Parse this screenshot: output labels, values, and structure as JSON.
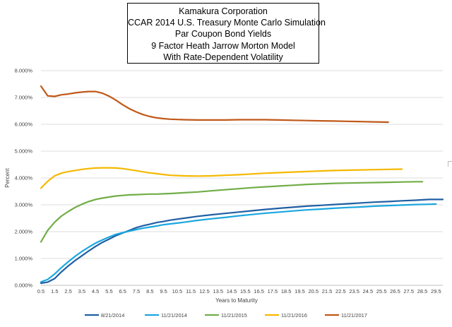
{
  "chart_data": {
    "type": "line",
    "title_lines": [
      "Kamakura Corporation",
      "CCAR 2014 U.S. Treasury Monte Carlo Simulation",
      "Par Coupon Bond Yields",
      "9 Factor Heath Jarrow Morton Model",
      "With Rate-Dependent Volatility"
    ],
    "xlabel": "Years to Maturity",
    "ylabel": "Percent",
    "xlim": [
      0.5,
      30
    ],
    "ylim": [
      0,
      8
    ],
    "y_ticks": [
      "0.000%",
      "1.000%",
      "2.000%",
      "3.000%",
      "4.000%",
      "5.000%",
      "6.000%",
      "7.000%",
      "8.000%"
    ],
    "x_ticks": [
      "0.5",
      "1.5",
      "2.5",
      "3.5",
      "4.5",
      "5.5",
      "6.5",
      "7.5",
      "8.5",
      "9.5",
      "10.5",
      "11.5",
      "12.5",
      "13.5",
      "14.5",
      "15.5",
      "16.5",
      "17.5",
      "18.5",
      "19.5",
      "20.5",
      "21.5",
      "22.5",
      "23.5",
      "24.5",
      "25.5",
      "26.5",
      "27.5",
      "28.5",
      "29.5"
    ],
    "grid": "horizontal",
    "legend_position": "bottom",
    "series": [
      {
        "name": "8/21/2014",
        "color": "#1f5fa3",
        "x": [
          0.5,
          1,
          1.5,
          2,
          2.5,
          3,
          3.5,
          4,
          4.5,
          5,
          5.5,
          6,
          6.5,
          7,
          7.5,
          8,
          8.5,
          9,
          9.5,
          10,
          11,
          12,
          13,
          14,
          15,
          16,
          17,
          18,
          19,
          20,
          21,
          22,
          23,
          24,
          25,
          26,
          27,
          28,
          29,
          30
        ],
        "y": [
          0.08,
          0.12,
          0.25,
          0.5,
          0.72,
          0.92,
          1.1,
          1.28,
          1.45,
          1.6,
          1.72,
          1.85,
          1.95,
          2.05,
          2.15,
          2.22,
          2.28,
          2.34,
          2.38,
          2.43,
          2.5,
          2.57,
          2.63,
          2.68,
          2.73,
          2.78,
          2.83,
          2.87,
          2.91,
          2.95,
          2.98,
          3.01,
          3.04,
          3.07,
          3.1,
          3.12,
          3.15,
          3.17,
          3.2,
          3.2
        ]
      },
      {
        "name": "11/21/2014",
        "color": "#1aa6df",
        "x": [
          0.5,
          1,
          1.5,
          2,
          2.5,
          3,
          3.5,
          4,
          4.5,
          5,
          5.5,
          6,
          6.5,
          7,
          7.5,
          8,
          8.5,
          9,
          9.5,
          10,
          11,
          12,
          13,
          14,
          15,
          16,
          17,
          18,
          19,
          20,
          21,
          22,
          23,
          24,
          25,
          26,
          27,
          28,
          29,
          29.5
        ],
        "y": [
          0.13,
          0.22,
          0.42,
          0.66,
          0.88,
          1.08,
          1.26,
          1.42,
          1.57,
          1.69,
          1.8,
          1.9,
          1.96,
          2.02,
          2.08,
          2.13,
          2.17,
          2.21,
          2.26,
          2.29,
          2.35,
          2.42,
          2.48,
          2.53,
          2.59,
          2.64,
          2.69,
          2.73,
          2.77,
          2.81,
          2.84,
          2.87,
          2.9,
          2.92,
          2.95,
          2.97,
          2.99,
          3.01,
          3.02,
          3.03
        ]
      },
      {
        "name": "11/21/2015",
        "color": "#71ad47",
        "x": [
          0.5,
          1,
          1.5,
          2,
          2.5,
          3,
          3.5,
          4,
          4.5,
          5,
          5.5,
          6,
          6.5,
          7,
          7.5,
          8,
          8.5,
          9,
          9.5,
          10,
          11,
          12,
          13,
          14,
          15,
          16,
          17,
          18,
          19,
          20,
          21,
          22,
          23,
          24,
          25,
          26,
          27,
          28,
          28.5
        ],
        "y": [
          1.62,
          2.05,
          2.35,
          2.58,
          2.75,
          2.9,
          3.02,
          3.12,
          3.2,
          3.25,
          3.29,
          3.33,
          3.35,
          3.37,
          3.38,
          3.39,
          3.4,
          3.4,
          3.41,
          3.42,
          3.45,
          3.48,
          3.52,
          3.56,
          3.6,
          3.64,
          3.67,
          3.7,
          3.73,
          3.76,
          3.78,
          3.8,
          3.81,
          3.82,
          3.83,
          3.84,
          3.85,
          3.86,
          3.86
        ]
      },
      {
        "name": "11/21/2016",
        "color": "#f5b800",
        "x": [
          0.5,
          1,
          1.5,
          2,
          2.5,
          3,
          3.5,
          4,
          4.5,
          5,
          5.5,
          6,
          6.5,
          7,
          7.5,
          8,
          8.5,
          9,
          9.5,
          10,
          11,
          12,
          13,
          14,
          15,
          16,
          17,
          18,
          19,
          20,
          21,
          22,
          23,
          24,
          25,
          26,
          27
        ],
        "y": [
          3.62,
          3.88,
          4.08,
          4.18,
          4.24,
          4.28,
          4.32,
          4.35,
          4.37,
          4.38,
          4.38,
          4.37,
          4.35,
          4.31,
          4.27,
          4.23,
          4.19,
          4.16,
          4.13,
          4.1,
          4.08,
          4.07,
          4.08,
          4.1,
          4.12,
          4.15,
          4.18,
          4.2,
          4.22,
          4.24,
          4.26,
          4.28,
          4.29,
          4.3,
          4.31,
          4.32,
          4.33
        ]
      },
      {
        "name": "11/21/2017",
        "color": "#c05818",
        "x": [
          0.5,
          1,
          1.5,
          2,
          2.5,
          3,
          3.5,
          4,
          4.5,
          5,
          5.5,
          6,
          6.5,
          7,
          7.5,
          8,
          8.5,
          9,
          9.5,
          10,
          11,
          12,
          13,
          14,
          15,
          16,
          17,
          18,
          19,
          20,
          21,
          22,
          23,
          24,
          25,
          26
        ],
        "y": [
          7.42,
          7.06,
          7.04,
          7.1,
          7.13,
          7.17,
          7.2,
          7.22,
          7.22,
          7.16,
          7.05,
          6.9,
          6.73,
          6.58,
          6.46,
          6.36,
          6.29,
          6.24,
          6.21,
          6.19,
          6.17,
          6.16,
          6.16,
          6.16,
          6.17,
          6.17,
          6.17,
          6.16,
          6.15,
          6.14,
          6.13,
          6.12,
          6.11,
          6.1,
          6.09,
          6.08
        ]
      }
    ]
  }
}
